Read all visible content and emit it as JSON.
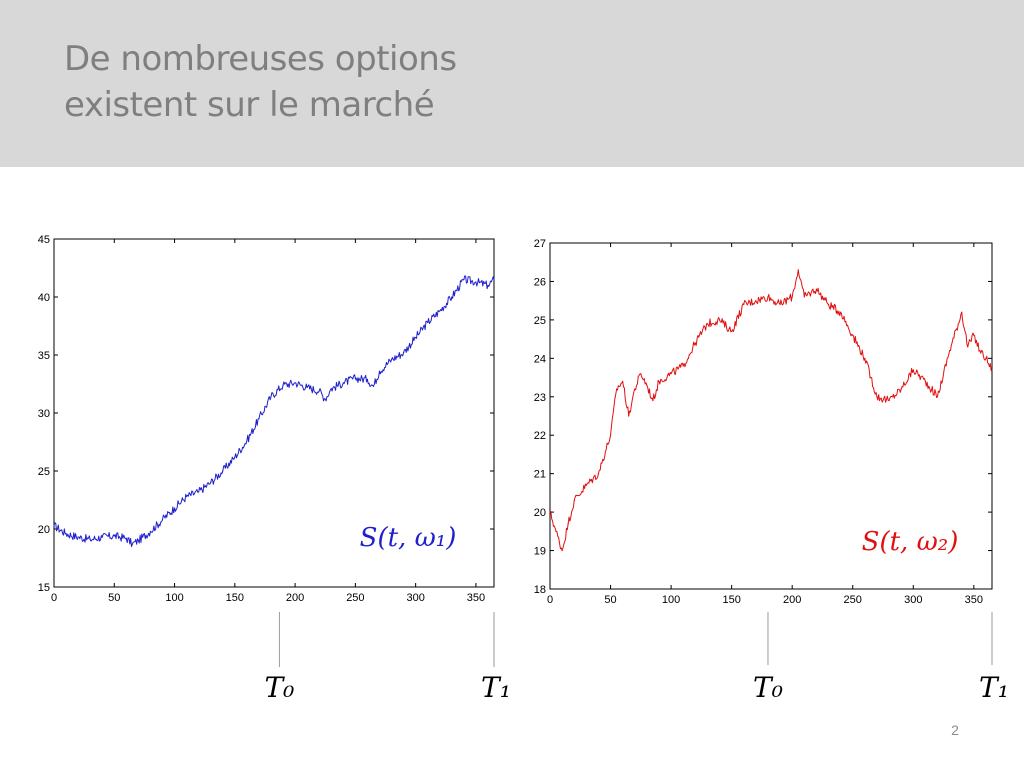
{
  "slide": {
    "title_line1": "De nombreuses options",
    "title_line2": "existent sur le marché",
    "page_number": "2"
  },
  "chart_data": [
    {
      "type": "line",
      "xlim": [
        0,
        365
      ],
      "ylim": [
        15,
        45
      ],
      "xticks": [
        0,
        50,
        100,
        150,
        200,
        250,
        300,
        350
      ],
      "yticks": [
        15,
        20,
        25,
        30,
        35,
        40,
        45
      ],
      "grid": false,
      "color": "#1f1fcc",
      "series_label": "S(t, ω₁)",
      "series": [
        {
          "name": "S(t, ω₁)",
          "x": [
            0,
            10,
            20,
            30,
            40,
            50,
            60,
            65,
            70,
            80,
            90,
            100,
            110,
            120,
            130,
            140,
            150,
            160,
            170,
            180,
            190,
            200,
            210,
            220,
            225,
            230,
            240,
            250,
            260,
            265,
            270,
            280,
            290,
            300,
            310,
            320,
            330,
            340,
            350,
            360,
            365
          ],
          "values": [
            20.3,
            19.6,
            19.3,
            19.1,
            19.3,
            19.4,
            19.2,
            18.7,
            19.0,
            19.8,
            20.8,
            21.8,
            22.8,
            23.2,
            24.0,
            25.0,
            26.2,
            27.6,
            29.5,
            31.4,
            32.4,
            32.6,
            32.2,
            31.9,
            31.2,
            32.1,
            32.6,
            33.0,
            32.9,
            32.3,
            33.6,
            34.6,
            35.2,
            36.5,
            37.8,
            38.8,
            40.0,
            41.5,
            41.3,
            41.0,
            41.5
          ]
        }
      ],
      "markers": [
        {
          "label": "T₀",
          "x": 187
        },
        {
          "label": "T₁",
          "x": 365
        }
      ]
    },
    {
      "type": "line",
      "xlim": [
        0,
        365
      ],
      "ylim": [
        18,
        27
      ],
      "xticks": [
        0,
        50,
        100,
        150,
        200,
        250,
        300,
        350
      ],
      "yticks": [
        18,
        19,
        20,
        21,
        22,
        23,
        24,
        25,
        26,
        27
      ],
      "grid": false,
      "color": "#e01010",
      "series_label": "S(t, ω₂)",
      "series": [
        {
          "name": "S(t, ω₂)",
          "x": [
            0,
            5,
            10,
            15,
            20,
            30,
            40,
            50,
            55,
            60,
            65,
            70,
            75,
            80,
            85,
            90,
            100,
            110,
            120,
            130,
            140,
            150,
            160,
            170,
            180,
            190,
            200,
            205,
            210,
            220,
            230,
            240,
            250,
            260,
            270,
            280,
            290,
            300,
            310,
            320,
            330,
            340,
            345,
            350,
            355,
            360,
            365
          ],
          "values": [
            20.0,
            19.5,
            19.0,
            19.7,
            20.3,
            20.7,
            21.0,
            22.0,
            23.2,
            23.4,
            22.5,
            23.2,
            23.6,
            23.3,
            22.9,
            23.4,
            23.6,
            23.8,
            24.4,
            24.9,
            25.0,
            24.7,
            25.4,
            25.5,
            25.6,
            25.4,
            25.6,
            26.3,
            25.6,
            25.8,
            25.4,
            25.2,
            24.6,
            24.0,
            23.0,
            22.9,
            23.2,
            23.7,
            23.4,
            23.0,
            24.2,
            25.2,
            24.3,
            24.6,
            24.2,
            24.0,
            23.7
          ]
        }
      ],
      "markers": [
        {
          "label": "T₀",
          "x": 180
        },
        {
          "label": "T₁",
          "x": 365
        }
      ]
    }
  ]
}
